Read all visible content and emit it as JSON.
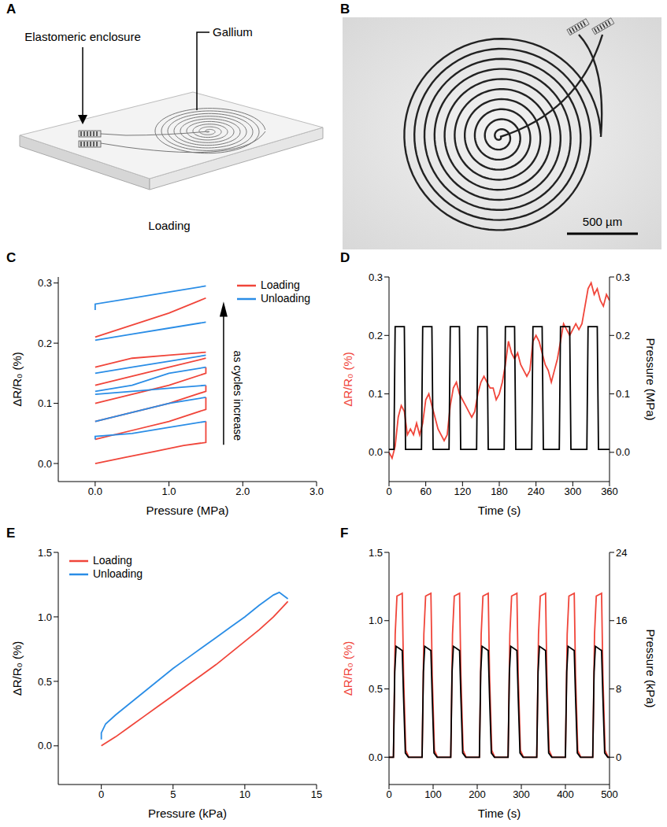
{
  "panels": {
    "A": {
      "label": "A",
      "enclosure_label": "Elastomeric enclosure",
      "metal_label": "Gallium",
      "caption": "Loading"
    },
    "B": {
      "label": "B",
      "scale_bar": "500 µm"
    }
  },
  "chart_data": [
    {
      "panel": "C",
      "type": "line",
      "xlabel": "Pressure (MPa)",
      "ylabel": "ΔR/R₀ (%)",
      "xlim": [
        -0.5,
        3.0
      ],
      "xticks": [
        {
          "value": 0,
          "label": "0.0"
        },
        {
          "value": 1,
          "label": "1.0"
        },
        {
          "value": 2,
          "label": "2.0"
        },
        {
          "value": 3,
          "label": "3.0"
        }
      ],
      "ylim": [
        -0.03,
        0.31
      ],
      "yticks": [
        {
          "value": 0,
          "label": "0.0"
        },
        0.1,
        0.2,
        0.3
      ],
      "legend": "top right",
      "annotations": [
        "as cycles increase"
      ],
      "series": [
        {
          "name": "Loading",
          "color": "#f0453a",
          "x": [
            0,
            0.4,
            0.8,
            1.2,
            1.5,
            1.5,
            1.5,
            0,
            0.5,
            1.0,
            1.5,
            1.5,
            1.5,
            0,
            0.5,
            1.0,
            1.5,
            1.5,
            1.5,
            0,
            0.5,
            1.0,
            1.5,
            1.5,
            1.5,
            0,
            0.5,
            1.0,
            1.5,
            1.5,
            0,
            0.5,
            1.0,
            1.5,
            1.5,
            0,
            0.5,
            1.0,
            1.5
          ],
          "values": [
            0,
            0.01,
            0.02,
            0.03,
            0.035,
            0.07,
            null,
            0.04,
            0.055,
            0.07,
            0.09,
            0.11,
            null,
            0.07,
            0.085,
            0.1,
            0.12,
            0.13,
            null,
            0.1,
            0.115,
            0.13,
            0.15,
            0.16,
            null,
            0.13,
            0.145,
            0.16,
            0.175,
            null,
            0.16,
            0.175,
            0.18,
            0.185,
            null,
            0.21,
            0.23,
            0.25,
            0.275
          ]
        },
        {
          "name": "Unloading",
          "color": "#2a8de6",
          "x": [
            1.5,
            1.0,
            0.5,
            0,
            0,
            0,
            1.5,
            1.0,
            0.5,
            0,
            0,
            1.5,
            1.0,
            0.5,
            0,
            0,
            1.5,
            1.0,
            0.5,
            0,
            0,
            1.5,
            1.0,
            0.5,
            0,
            0,
            1.5,
            1.0,
            0.5,
            0,
            0,
            1.5,
            1.0,
            0.5,
            0,
            0
          ],
          "values": [
            0.07,
            0.06,
            0.05,
            0.045,
            0.04,
            null,
            0.11,
            0.1,
            0.085,
            0.07,
            null,
            0.13,
            0.125,
            0.12,
            0.115,
            null,
            0.16,
            0.15,
            0.13,
            0.12,
            null,
            0.18,
            0.17,
            0.16,
            0.15,
            null,
            0.235,
            0.225,
            0.215,
            0.205,
            null,
            0.295,
            0.285,
            0.275,
            0.265,
            0.255
          ]
        }
      ]
    },
    {
      "panel": "D",
      "type": "line",
      "xlabel": "Time (s)",
      "ylabel": "ΔR/R₀ (%)",
      "y2label": "Pressure (MPa)",
      "xlim": [
        0,
        360
      ],
      "xticks": [
        0,
        60,
        120,
        180,
        240,
        300,
        360
      ],
      "ylim": [
        -0.05,
        0.3
      ],
      "yticks": [
        {
          "value": 0,
          "label": "0.0"
        },
        0.1,
        0.2,
        0.3
      ],
      "y2lim": [
        -0.05,
        0.3
      ],
      "y2ticks": [
        {
          "value": 0,
          "label": "0.0"
        },
        0.1,
        0.2,
        0.3
      ],
      "series": [
        {
          "color": "#f0453a",
          "x": [
            0,
            5,
            10,
            15,
            20,
            25,
            30,
            35,
            40,
            45,
            50,
            55,
            60,
            65,
            70,
            75,
            80,
            85,
            90,
            95,
            100,
            105,
            110,
            115,
            120,
            125,
            130,
            135,
            140,
            145,
            150,
            155,
            160,
            165,
            170,
            175,
            180,
            185,
            190,
            195,
            200,
            205,
            210,
            215,
            220,
            225,
            230,
            235,
            240,
            245,
            250,
            255,
            260,
            265,
            270,
            275,
            280,
            285,
            290,
            295,
            300,
            305,
            310,
            315,
            320,
            325,
            330,
            335,
            340,
            345,
            350,
            355,
            360
          ],
          "values": [
            0,
            -0.01,
            0.01,
            0.06,
            0.08,
            0.07,
            0.03,
            0.04,
            0.03,
            0.05,
            0.03,
            0.05,
            0.09,
            0.1,
            0.08,
            0.06,
            0.04,
            0.03,
            0.02,
            0.03,
            0.08,
            0.11,
            0.12,
            0.1,
            0.09,
            0.08,
            0.07,
            0.06,
            0.07,
            0.1,
            0.12,
            0.13,
            0.12,
            0.11,
            0.11,
            0.09,
            0.1,
            0.12,
            0.15,
            0.19,
            0.17,
            0.16,
            0.17,
            0.15,
            0.14,
            0.13,
            0.14,
            0.19,
            0.2,
            0.19,
            0.17,
            0.15,
            0.14,
            0.12,
            0.14,
            0.16,
            0.19,
            0.22,
            0.21,
            0.2,
            0.21,
            0.22,
            0.21,
            0.22,
            0.25,
            0.28,
            0.29,
            0.27,
            0.28,
            0.26,
            0.25,
            0.27,
            0.26
          ]
        },
        {
          "color": "#000000",
          "axis": "y2",
          "x": [
            0,
            8,
            10,
            25,
            27,
            53,
            55,
            70,
            72,
            98,
            100,
            115,
            117,
            143,
            145,
            160,
            162,
            188,
            190,
            205,
            207,
            233,
            235,
            250,
            252,
            278,
            280,
            295,
            297,
            323,
            325,
            340,
            342,
            360
          ],
          "values": [
            0.005,
            0.005,
            0.215,
            0.215,
            0.005,
            0.005,
            0.215,
            0.215,
            0.005,
            0.005,
            0.215,
            0.215,
            0.005,
            0.005,
            0.215,
            0.215,
            0.005,
            0.005,
            0.215,
            0.215,
            0.005,
            0.005,
            0.215,
            0.215,
            0.005,
            0.005,
            0.215,
            0.215,
            0.005,
            0.005,
            0.215,
            0.215,
            0.005,
            0.005
          ]
        }
      ]
    },
    {
      "panel": "E",
      "type": "line",
      "xlabel": "Pressure (kPa)",
      "ylabel": "ΔR/R₀ (%)",
      "xlim": [
        -3,
        15
      ],
      "xticks": [
        0,
        5,
        10,
        15
      ],
      "ylim": [
        -0.3,
        1.5
      ],
      "yticks": [
        {
          "value": 0,
          "label": "0.0"
        },
        0.5,
        {
          "value": 1,
          "label": "1.0"
        },
        1.5
      ],
      "legend": "top left",
      "series": [
        {
          "name": "Loading",
          "color": "#f0453a",
          "x": [
            0,
            1,
            2,
            3,
            4,
            5,
            6,
            7,
            8,
            9,
            10,
            11,
            12,
            13
          ],
          "values": [
            0,
            0.07,
            0.15,
            0.23,
            0.31,
            0.39,
            0.47,
            0.55,
            0.63,
            0.72,
            0.81,
            0.9,
            1.0,
            1.12
          ]
        },
        {
          "name": "Unloading",
          "color": "#2a8de6",
          "x": [
            13,
            12.4,
            12,
            11,
            10,
            9,
            8,
            7,
            6,
            5,
            4,
            3,
            2,
            1,
            0.3,
            0,
            0
          ],
          "values": [
            1.14,
            1.19,
            1.17,
            1.09,
            1.0,
            0.92,
            0.84,
            0.76,
            0.68,
            0.6,
            0.51,
            0.42,
            0.33,
            0.24,
            0.17,
            0.1,
            0.05
          ]
        }
      ]
    },
    {
      "panel": "F",
      "type": "line",
      "xlabel": "Time (s)",
      "ylabel": "ΔR/R₀ (%)",
      "y2label": "Pressure (kPa)",
      "xlim": [
        0,
        500
      ],
      "xticks": [
        0,
        100,
        200,
        300,
        400,
        500
      ],
      "ylim": [
        -0.2,
        1.5
      ],
      "yticks": [
        {
          "value": 0,
          "label": "0.0"
        },
        0.5,
        {
          "value": 1,
          "label": "1.0"
        },
        1.5
      ],
      "y2lim": [
        -3.2,
        24
      ],
      "y2ticks": [
        0,
        8,
        16,
        24
      ],
      "series": [
        {
          "color": "#f0453a",
          "x": [
            0,
            10,
            14,
            18,
            30,
            33,
            38,
            45,
            75,
            79,
            83,
            95,
            98,
            103,
            110,
            140,
            144,
            148,
            160,
            163,
            168,
            175,
            205,
            209,
            213,
            225,
            228,
            233,
            240,
            270,
            274,
            278,
            290,
            293,
            298,
            305,
            335,
            339,
            343,
            355,
            358,
            363,
            370,
            400,
            404,
            408,
            420,
            423,
            428,
            435,
            462,
            466,
            470,
            482,
            485,
            490,
            497,
            500
          ],
          "values": [
            0,
            0,
            0.9,
            1.18,
            1.2,
            0.6,
            0.05,
            0,
            0,
            0.9,
            1.18,
            1.2,
            0.6,
            0.05,
            0,
            0,
            0.9,
            1.18,
            1.2,
            0.6,
            0.05,
            0,
            0,
            0.9,
            1.18,
            1.2,
            0.6,
            0.05,
            0,
            0,
            0.9,
            1.18,
            1.2,
            0.6,
            0.05,
            0,
            0,
            0.9,
            1.18,
            1.2,
            0.6,
            0.05,
            0,
            0,
            0.9,
            1.18,
            1.2,
            0.6,
            0.05,
            0,
            0,
            0.9,
            1.18,
            1.2,
            0.6,
            0.05,
            0,
            0
          ]
        },
        {
          "color": "#000000",
          "axis": "y2",
          "x": [
            0,
            10,
            13,
            16,
            30,
            33,
            37,
            44,
            75,
            78,
            81,
            95,
            98,
            102,
            109,
            140,
            143,
            146,
            160,
            163,
            167,
            174,
            205,
            208,
            211,
            225,
            228,
            232,
            239,
            270,
            273,
            276,
            290,
            293,
            297,
            304,
            335,
            338,
            341,
            355,
            358,
            362,
            369,
            400,
            403,
            406,
            420,
            423,
            427,
            434,
            462,
            465,
            468,
            482,
            485,
            489,
            496,
            500
          ],
          "values": [
            0,
            0,
            10,
            13,
            12.5,
            7,
            0.5,
            0,
            0,
            10,
            13,
            12.5,
            7,
            0.5,
            0,
            0,
            10,
            13,
            12.5,
            7,
            0.5,
            0,
            0,
            10,
            13,
            12.5,
            7,
            0.5,
            0,
            0,
            10,
            13,
            12.5,
            7,
            0.5,
            0,
            0,
            10,
            13,
            12.5,
            7,
            0.5,
            0,
            0,
            10,
            13,
            12.5,
            7,
            0.5,
            0,
            0,
            10,
            13,
            12.5,
            7,
            0.5,
            0,
            0
          ]
        }
      ]
    }
  ]
}
